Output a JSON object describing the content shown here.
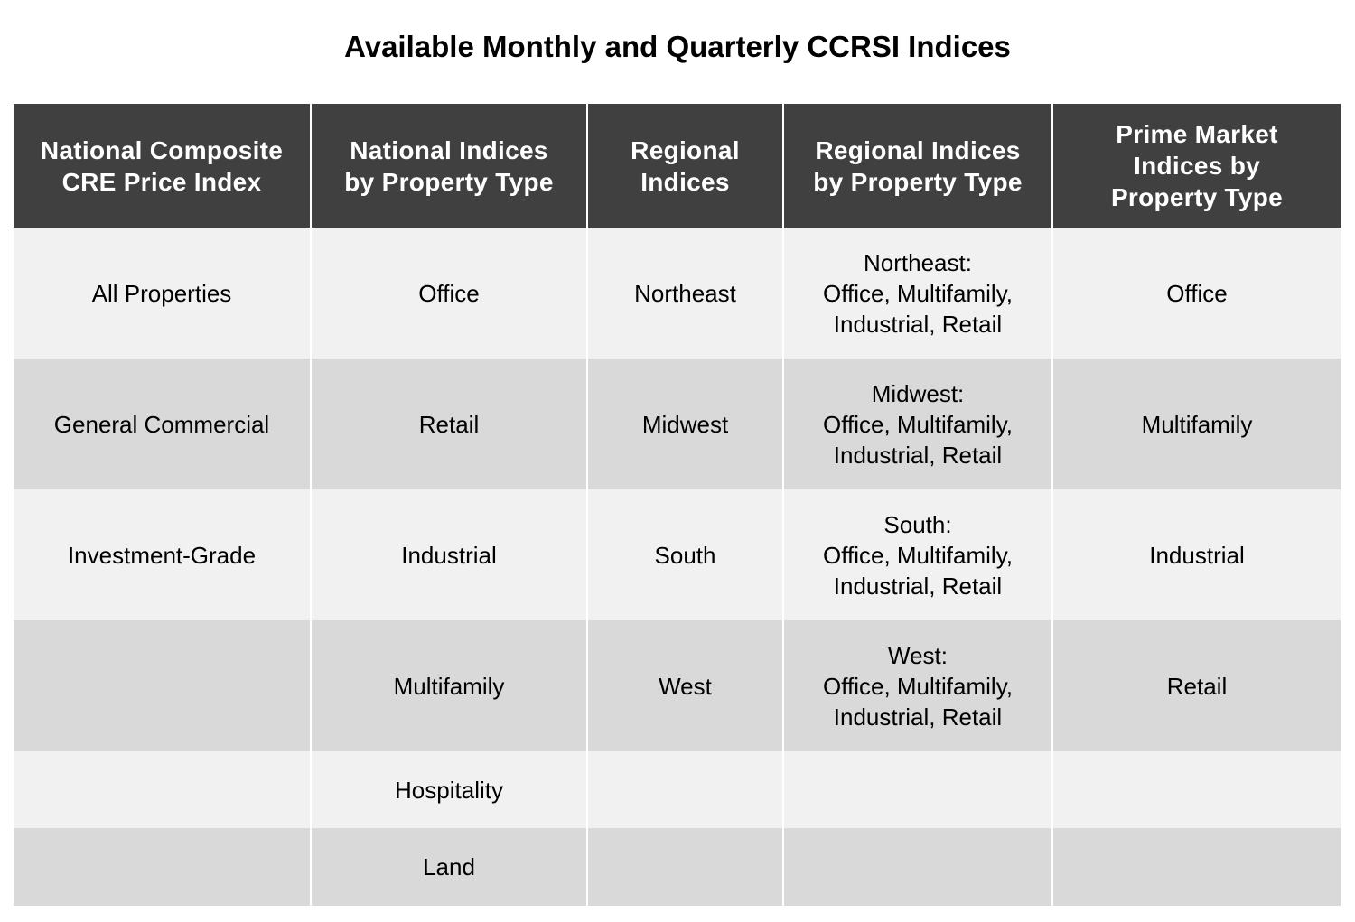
{
  "title": "Available Monthly and Quarterly CCRSI Indices",
  "colors": {
    "header_bg": "#404040",
    "header_text": "#ffffff",
    "row_light": "#f1f1f1",
    "row_dark": "#d9d9d9"
  },
  "table": {
    "headers": [
      "National Composite\nCRE Price Index",
      "National Indices\nby Property Type",
      "Regional\nIndices",
      "Regional Indices\nby Property Type",
      "Prime Market\nIndices by\nProperty Type"
    ],
    "rows": [
      [
        "All Properties",
        "Office",
        "Northeast",
        "Northeast:\nOffice, Multifamily,\nIndustrial, Retail",
        "Office"
      ],
      [
        "General Commercial",
        "Retail",
        "Midwest",
        "Midwest:\nOffice, Multifamily,\nIndustrial, Retail",
        "Multifamily"
      ],
      [
        "Investment-Grade",
        "Industrial",
        "South",
        "South:\nOffice, Multifamily,\nIndustrial, Retail",
        "Industrial"
      ],
      [
        "",
        "Multifamily",
        "West",
        "West:\nOffice, Multifamily,\nIndustrial, Retail",
        "Retail"
      ],
      [
        "",
        "Hospitality",
        "",
        "",
        ""
      ],
      [
        "",
        "Land",
        "",
        "",
        ""
      ]
    ]
  }
}
